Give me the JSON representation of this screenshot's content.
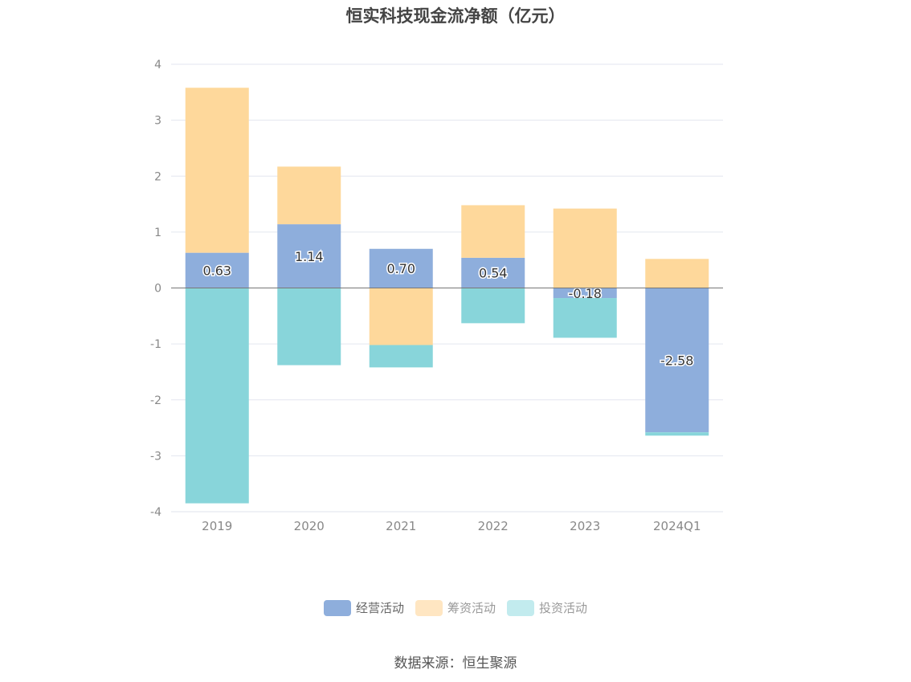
{
  "chart_data": {
    "type": "bar",
    "stacked": true,
    "title": "恒实科技现金流净额（亿元）",
    "categories": [
      "2019",
      "2020",
      "2021",
      "2022",
      "2023",
      "2024Q1"
    ],
    "series": [
      {
        "name": "经营活动",
        "color": "#8eaedc",
        "values": [
          0.63,
          1.14,
          0.7,
          0.54,
          -0.18,
          -2.58
        ],
        "show_labels": true
      },
      {
        "name": "筹资活动",
        "color": "#fed89b",
        "values": [
          2.95,
          1.03,
          -1.02,
          0.94,
          1.42,
          0.52
        ],
        "show_labels": false
      },
      {
        "name": "投资活动",
        "color": "#88d5da",
        "values": [
          -3.85,
          -1.38,
          -0.4,
          -0.63,
          -0.71,
          -0.06
        ],
        "show_labels": false
      }
    ],
    "ylim": [
      -4,
      4
    ],
    "yticks": [
      4,
      3,
      2,
      1,
      0,
      -1,
      -2,
      -3,
      -4
    ],
    "grid": true,
    "legend_position": "bottom"
  },
  "legend": {
    "items": [
      {
        "label": "经营活动",
        "color": "#8eaedc"
      },
      {
        "label": "筹资活动",
        "color": "#ffe6c2"
      },
      {
        "label": "投资活动",
        "color": "#c2ebee"
      }
    ]
  },
  "source": "数据来源：恒生聚源"
}
